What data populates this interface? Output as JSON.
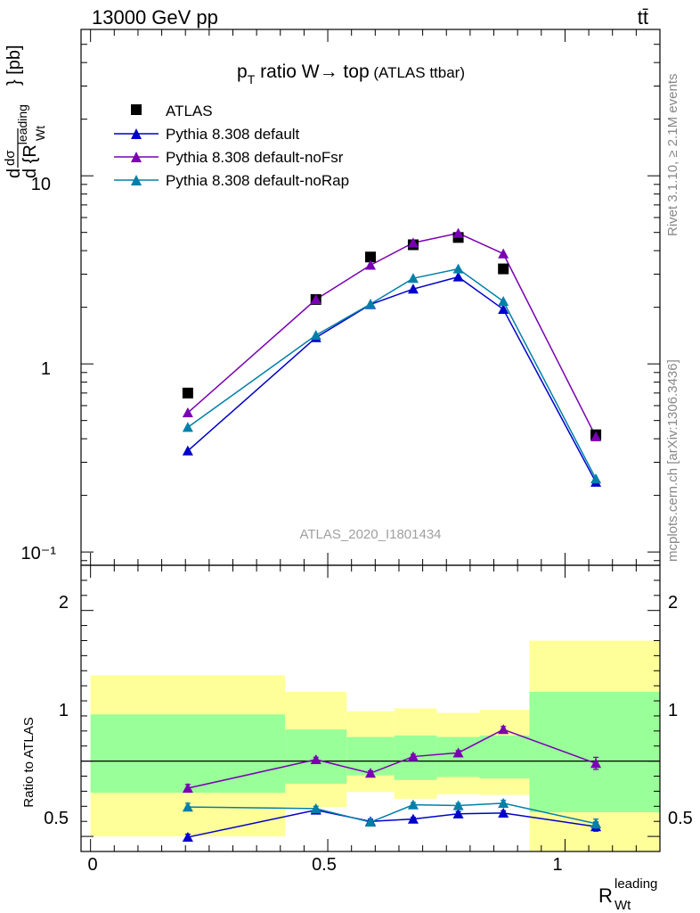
{
  "header": {
    "left": "13000 GeV pp",
    "right": "tt̄"
  },
  "side_labels": {
    "top": "Rivet 3.1.10, ≥ 2.1M events",
    "bottom": "mcplots.cern.ch [arXiv:1306.3436]"
  },
  "title": {
    "main": "p",
    "sub": "T",
    "rest": " ratio W→ top",
    "small": " (ATLAS ttbar)"
  },
  "watermark": "ATLAS_2020_I1801434",
  "ylabel_top": {
    "d1": "d",
    "dsigma": "dσ",
    "brace": "d {R",
    "sup": "leading",
    "sub": "Wt",
    "close": "} [pb]"
  },
  "ylabel_bottom": "Ratio to ATLAS",
  "xlabel": {
    "base": "R",
    "sup": "leading",
    "sub": "Wt"
  },
  "colors": {
    "atlas": "#000000",
    "default": "#0000cc",
    "noFsr": "#7a00b4",
    "noRap": "#0080a8",
    "band_yellow": "#ffff99",
    "band_green": "#99ff99"
  },
  "chart_data": [
    {
      "type": "line",
      "yscale": "log",
      "xlim": [
        -0.02,
        1.2
      ],
      "ylim": [
        0.085,
        60
      ],
      "y_ticks": [
        "10⁻¹",
        "1",
        "10"
      ],
      "legend_position": "top-left",
      "series": [
        {
          "name": "ATLAS",
          "marker": "square",
          "x": [
            0.205,
            0.475,
            0.59,
            0.68,
            0.775,
            0.87,
            1.065
          ],
          "y": [
            0.7,
            2.2,
            3.7,
            4.3,
            4.7,
            3.2,
            0.42
          ]
        },
        {
          "name": "Pythia 8.308 default",
          "marker": "triangle",
          "x": [
            0.205,
            0.475,
            0.59,
            0.68,
            0.775,
            0.87,
            1.065
          ],
          "y": [
            0.345,
            1.38,
            2.07,
            2.5,
            2.9,
            1.95,
            0.235
          ]
        },
        {
          "name": "Pythia 8.308 default-noFsr",
          "marker": "triangle",
          "x": [
            0.205,
            0.475,
            0.59,
            0.68,
            0.775,
            0.87,
            1.065
          ],
          "y": [
            0.55,
            2.2,
            3.35,
            4.4,
            4.95,
            3.85,
            0.41
          ]
        },
        {
          "name": "Pythia 8.308 default-noRap",
          "marker": "triangle",
          "x": [
            0.205,
            0.475,
            0.59,
            0.68,
            0.775,
            0.87,
            1.065
          ],
          "y": [
            0.46,
            1.42,
            2.08,
            2.85,
            3.2,
            2.15,
            0.245
          ]
        }
      ]
    },
    {
      "type": "line",
      "xlim": [
        -0.02,
        1.2
      ],
      "ylim": [
        0.4,
        2.3
      ],
      "x_ticks": [
        "0",
        "0.5",
        "1"
      ],
      "y_ticks": [
        "0.5",
        "1",
        "2"
      ],
      "bands": [
        {
          "xlo": 0.0,
          "xhi": 0.41,
          "yellow": [
            0.5,
            1.57
          ],
          "green": [
            0.79,
            1.31
          ]
        },
        {
          "xlo": 0.41,
          "xhi": 0.54,
          "yellow": [
            0.695,
            1.46
          ],
          "green": [
            0.85,
            1.21
          ]
        },
        {
          "xlo": 0.54,
          "xhi": 0.64,
          "yellow": [
            0.795,
            1.33
          ],
          "green": [
            0.905,
            1.16
          ]
        },
        {
          "xlo": 0.64,
          "xhi": 0.73,
          "yellow": [
            0.75,
            1.35
          ],
          "green": [
            0.875,
            1.17
          ]
        },
        {
          "xlo": 0.73,
          "xhi": 0.82,
          "yellow": [
            0.78,
            1.32
          ],
          "green": [
            0.895,
            1.16
          ]
        },
        {
          "xlo": 0.82,
          "xhi": 0.925,
          "yellow": [
            0.775,
            1.34
          ],
          "green": [
            0.885,
            1.17
          ]
        },
        {
          "xlo": 0.925,
          "xhi": 1.2,
          "yellow": [
            0.36,
            1.8
          ],
          "green": [
            0.66,
            1.46
          ]
        }
      ],
      "series": [
        {
          "name": "Pythia 8.308 default",
          "x": [
            0.205,
            0.475,
            0.59,
            0.68,
            0.775,
            0.87,
            1.065
          ],
          "y": [
            0.495,
            0.675,
            0.6,
            0.615,
            0.65,
            0.655,
            0.565
          ],
          "err": [
            0.02,
            0.012,
            0.015,
            0.012,
            0.015,
            0.015,
            0.03
          ]
        },
        {
          "name": "Pythia 8.308 default-noFsr",
          "x": [
            0.205,
            0.475,
            0.59,
            0.68,
            0.775,
            0.87,
            1.065
          ],
          "y": [
            0.82,
            1.01,
            0.92,
            1.03,
            1.055,
            1.21,
            0.985
          ],
          "err": [
            0.025,
            0.015,
            0.015,
            0.015,
            0.015,
            0.02,
            0.04
          ]
        },
        {
          "name": "Pythia 8.308 default-noRap",
          "x": [
            0.205,
            0.475,
            0.59,
            0.68,
            0.775,
            0.87,
            1.065
          ],
          "y": [
            0.695,
            0.685,
            0.595,
            0.71,
            0.705,
            0.72,
            0.585
          ],
          "err": [
            0.025,
            0.015,
            0.015,
            0.015,
            0.015,
            0.02,
            0.03
          ]
        }
      ]
    }
  ]
}
